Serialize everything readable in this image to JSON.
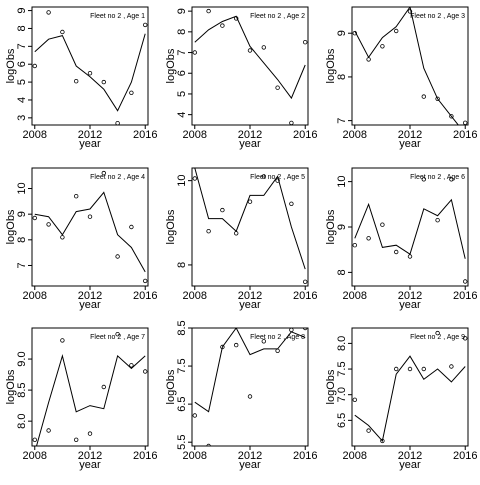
{
  "chart_data": [
    {
      "type": "scatter",
      "title": "Fleet no 2 , Age 1",
      "xlabel": "year",
      "ylabel": "logObs",
      "xlim": [
        2007.8,
        2016.2
      ],
      "ylim": [
        2.6,
        9.2
      ],
      "xticks": [
        2008,
        2012,
        2016
      ],
      "yticks": [
        3,
        4,
        5,
        6,
        7,
        8,
        9
      ],
      "x": [
        2008,
        2009,
        2010,
        2011,
        2012,
        2013,
        2014,
        2015,
        2016
      ],
      "observed": [
        5.9,
        8.9,
        7.8,
        5.05,
        5.5,
        5.0,
        2.7,
        4.4,
        8.2
      ],
      "fitted": [
        6.7,
        7.4,
        7.6,
        5.9,
        5.3,
        4.6,
        3.4,
        5.0,
        7.7
      ]
    },
    {
      "type": "scatter",
      "title": "Fleet no 2 , Age 2",
      "xlabel": "year",
      "ylabel": "logObs",
      "xlim": [
        2007.8,
        2016.2
      ],
      "ylim": [
        3.5,
        9.2
      ],
      "xticks": [
        2008,
        2012,
        2016
      ],
      "yticks": [
        4,
        5,
        6,
        7,
        8,
        9
      ],
      "x": [
        2008,
        2009,
        2010,
        2011,
        2012,
        2013,
        2014,
        2015,
        2016
      ],
      "observed": [
        7.0,
        9.0,
        8.3,
        8.65,
        7.1,
        7.25,
        5.3,
        3.6,
        7.5
      ],
      "fitted": [
        7.5,
        8.1,
        8.5,
        8.75,
        7.3,
        6.5,
        5.7,
        4.8,
        6.4
      ]
    },
    {
      "type": "scatter",
      "title": "Fleet no 2 , Age 3",
      "xlabel": "year",
      "ylabel": "logObs",
      "xlim": [
        2007.8,
        2016.2
      ],
      "ylim": [
        6.9,
        9.6
      ],
      "xticks": [
        2008,
        2012,
        2016
      ],
      "yticks": [
        7.0,
        8.0,
        9.0
      ],
      "x": [
        2008,
        2009,
        2010,
        2011,
        2012,
        2013,
        2014,
        2015,
        2016
      ],
      "observed": [
        9.0,
        8.4,
        8.7,
        9.05,
        9.5,
        7.55,
        7.5,
        7.1,
        6.95
      ],
      "fitted": [
        9.05,
        8.45,
        8.9,
        9.15,
        9.6,
        8.2,
        7.5,
        7.1,
        6.7
      ]
    },
    {
      "type": "scatter",
      "title": "Fleet no 2 , Age 4",
      "xlabel": "year",
      "ylabel": "logObs",
      "xlim": [
        2007.8,
        2016.2
      ],
      "ylim": [
        6.2,
        10.8
      ],
      "xticks": [
        2008,
        2012,
        2016
      ],
      "yticks": [
        7,
        8,
        9,
        10
      ],
      "x": [
        2008,
        2009,
        2010,
        2011,
        2012,
        2013,
        2014,
        2015,
        2016
      ],
      "observed": [
        8.85,
        8.6,
        8.1,
        9.7,
        8.9,
        10.6,
        7.35,
        8.5,
        6.4
      ],
      "fitted": [
        9.0,
        8.9,
        8.2,
        9.1,
        9.2,
        9.85,
        8.2,
        7.7,
        6.75
      ]
    },
    {
      "type": "scatter",
      "title": "Fleet no 2 , Age 5",
      "xlabel": "year",
      "ylabel": "logObs",
      "xlim": [
        2007.8,
        2016.2
      ],
      "ylim": [
        7.5,
        10.3
      ],
      "xticks": [
        2008,
        2012,
        2016
      ],
      "yticks": [
        8.0,
        10.0
      ],
      "x": [
        2008,
        2009,
        2010,
        2011,
        2012,
        2013,
        2014,
        2015,
        2016
      ],
      "observed": [
        10.05,
        8.8,
        9.3,
        8.75,
        9.5,
        10.1,
        10.0,
        9.45,
        7.6
      ],
      "fitted": [
        10.3,
        9.1,
        9.1,
        8.8,
        9.65,
        9.65,
        10.1,
        8.9,
        7.9
      ]
    },
    {
      "type": "scatter",
      "title": "Fleet no 2 , Age 6",
      "xlabel": "year",
      "ylabel": "logObs",
      "xlim": [
        2007.8,
        2016.2
      ],
      "ylim": [
        7.7,
        10.3
      ],
      "xticks": [
        2008,
        2012,
        2016
      ],
      "yticks": [
        8.0,
        9.0,
        10.0
      ],
      "x": [
        2008,
        2009,
        2010,
        2011,
        2012,
        2013,
        2014,
        2015,
        2016
      ],
      "observed": [
        8.6,
        8.75,
        9.05,
        8.45,
        8.35,
        10.05,
        9.15,
        10.05,
        7.8
      ],
      "fitted": [
        8.75,
        9.5,
        8.55,
        8.6,
        8.4,
        9.4,
        9.25,
        9.6,
        8.3
      ]
    },
    {
      "type": "scatter",
      "title": "Fleet no 2 , Age 7",
      "xlabel": "year",
      "ylabel": "logObs",
      "xlim": [
        2007.8,
        2016.2
      ],
      "ylim": [
        7.6,
        9.5
      ],
      "xticks": [
        2008,
        2012,
        2016
      ],
      "yticks": [
        8.0,
        8.5,
        9.0
      ],
      "x": [
        2008,
        2009,
        2010,
        2011,
        2012,
        2013,
        2014,
        2015,
        2016
      ],
      "observed": [
        7.7,
        7.85,
        9.3,
        7.7,
        7.8,
        8.55,
        9.4,
        8.9,
        8.8
      ],
      "fitted": [
        7.5,
        8.3,
        9.05,
        8.15,
        8.25,
        8.2,
        9.05,
        8.85,
        9.05
      ]
    },
    {
      "type": "scatter",
      "title": "Fleet no 2 , Age 8",
      "xlabel": "year",
      "ylabel": "logObs",
      "xlim": [
        2007.8,
        2016.2
      ],
      "ylim": [
        5.4,
        8.5
      ],
      "xticks": [
        2008,
        2012,
        2016
      ],
      "yticks": [
        5.5,
        6.5,
        7.5,
        8.5
      ],
      "x": [
        2008,
        2009,
        2010,
        2011,
        2012,
        2013,
        2014,
        2015,
        2016
      ],
      "observed": [
        6.2,
        5.4,
        8.0,
        8.05,
        6.7,
        8.15,
        7.9,
        8.45,
        8.5
      ],
      "fitted": [
        6.55,
        6.3,
        8.0,
        8.5,
        7.8,
        7.95,
        7.95,
        8.4,
        8.25
      ]
    },
    {
      "type": "scatter",
      "title": "Fleet no 2 , Age 9",
      "xlabel": "year",
      "ylabel": "logObs",
      "xlim": [
        2007.8,
        2016.2
      ],
      "ylim": [
        6.0,
        8.3
      ],
      "xticks": [
        2008,
        2012,
        2016
      ],
      "yticks": [
        6.5,
        7.0,
        7.5,
        8.0
      ],
      "x": [
        2008,
        2009,
        2010,
        2011,
        2012,
        2013,
        2014,
        2015,
        2016
      ],
      "observed": [
        6.9,
        6.3,
        6.1,
        7.5,
        7.5,
        7.5,
        8.2,
        7.55,
        8.1
      ],
      "fitted": [
        6.6,
        6.4,
        6.1,
        7.4,
        7.75,
        7.3,
        7.5,
        7.25,
        7.55
      ]
    }
  ]
}
